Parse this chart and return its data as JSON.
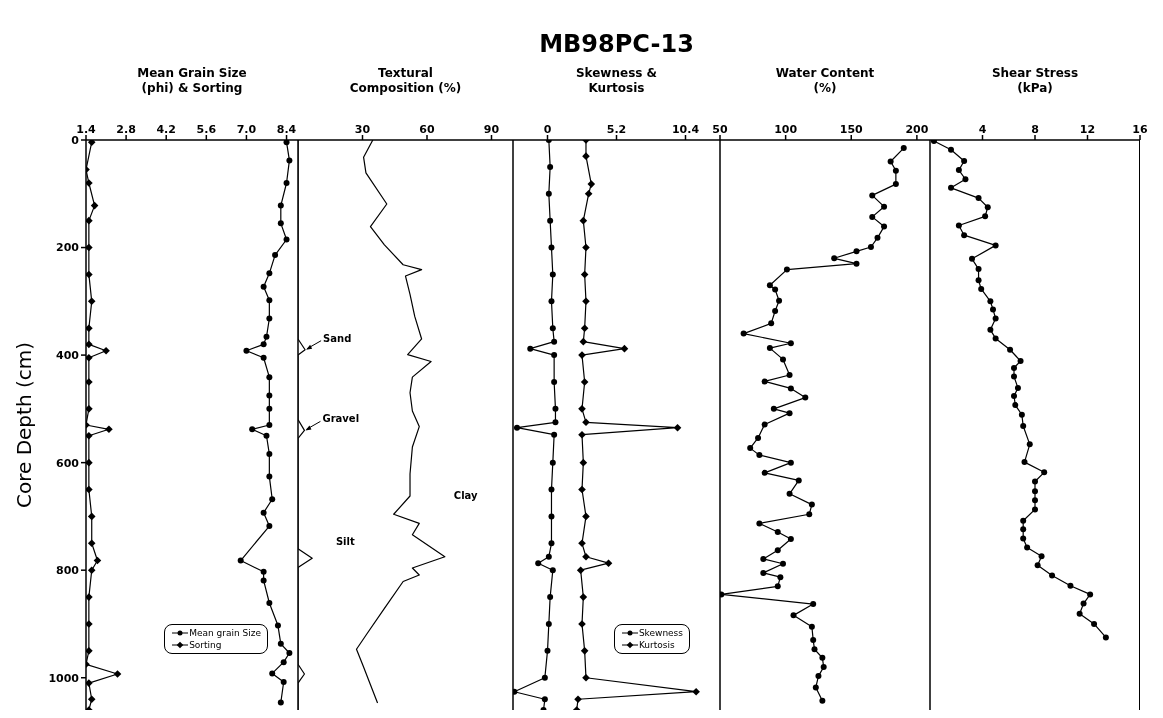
{
  "chart_data": [
    {
      "type": "line",
      "orientation": "horizontal",
      "xlabel": "Mean Grain Size (phi) & Sorting",
      "ylabel": "Core Depth (cm)",
      "xlim": [
        1.4,
        8.8
      ],
      "xticks": [
        1.4,
        2.8,
        4.2,
        5.6,
        {
          "value": 7,
          "label": "7.0"
        },
        8.4
      ],
      "ylim": [
        1060,
        0
      ],
      "yticks": [
        0,
        200,
        400,
        600,
        800,
        1000
      ],
      "legend": "bottom right",
      "series": [
        {
          "name": "Mean grain Size",
          "color": "#000000",
          "marker": "circle",
          "x": [
            4,
            38,
            80,
            122,
            155,
            185,
            214,
            248,
            273,
            298,
            332,
            366,
            380,
            392,
            405,
            441,
            475,
            500,
            530,
            538,
            550,
            584,
            626,
            668,
            693,
            718,
            782,
            803,
            819,
            861,
            903,
            937,
            954,
            971,
            992,
            1008,
            1046
          ],
          "values": [
            8.4,
            8.5,
            8.4,
            8.2,
            8.2,
            8.4,
            8.0,
            7.8,
            7.6,
            7.8,
            7.8,
            7.7,
            7.6,
            7.0,
            7.6,
            7.8,
            7.8,
            7.8,
            7.8,
            7.2,
            7.7,
            7.8,
            7.8,
            7.9,
            7.6,
            7.8,
            6.8,
            7.6,
            7.6,
            7.8,
            8.1,
            8.2,
            8.5,
            8.3,
            7.9,
            8.3,
            8.2
          ]
        },
        {
          "name": "Sorting",
          "color": "#000000",
          "marker": "diamond",
          "x": [
            4,
            55,
            80,
            122,
            150,
            200,
            250,
            300,
            350,
            380,
            392,
            405,
            450,
            500,
            530,
            538,
            550,
            600,
            650,
            700,
            750,
            782,
            800,
            850,
            900,
            950,
            975,
            993,
            1010,
            1040,
            1060
          ],
          "values": [
            1.6,
            1.4,
            1.5,
            1.7,
            1.5,
            1.5,
            1.5,
            1.6,
            1.5,
            1.5,
            2.1,
            1.5,
            1.5,
            1.5,
            1.4,
            2.2,
            1.5,
            1.5,
            1.5,
            1.6,
            1.6,
            1.8,
            1.6,
            1.5,
            1.5,
            1.5,
            1.4,
            2.5,
            1.5,
            1.6,
            1.5
          ]
        }
      ]
    },
    {
      "type": "line",
      "orientation": "horizontal",
      "xlabel": "Textural Composition (%)",
      "xlim": [
        0,
        100
      ],
      "xticks": [
        30,
        60,
        90
      ],
      "ylim": [
        1060,
        0
      ],
      "yticks": [
        0,
        200,
        400,
        600,
        800,
        1000
      ],
      "tick_labels": "x",
      "series": [
        {
          "color": "#000000",
          "marker": "none",
          "x": [
            0,
            370,
            390,
            400,
            520,
            540,
            555,
            760,
            778,
            795,
            975,
            993,
            1010,
            1060
          ],
          "values": [
            0,
            0,
            3.3,
            0,
            0,
            3,
            0,
            0,
            6.6,
            0,
            0,
            3,
            0,
            0
          ]
        },
        {
          "color": "#000000",
          "marker": "none",
          "x": [
            0,
            32,
            61,
            119,
            161,
            195,
            232,
            241,
            253,
            287,
            328,
            370,
            399,
            412,
            441,
            470,
            504,
            533,
            571,
            621,
            662,
            696,
            713,
            734,
            775,
            796,
            809,
            821,
            871,
            921,
            947,
            980,
            1013,
            1047
          ],
          "values": [
            34.8,
            30.5,
            31.6,
            41.3,
            33.7,
            40.2,
            48.9,
            57.5,
            50,
            52.1,
            54.3,
            57.5,
            51,
            61.9,
            53.2,
            52.1,
            53.2,
            56.4,
            53.2,
            52.1,
            52.1,
            44.5,
            56.4,
            53.2,
            68.3,
            53.2,
            56.4,
            48.9,
            40.2,
            31.6,
            27.2,
            30.5,
            33.7,
            37
          ]
        }
      ],
      "annotations": [
        {
          "text": "Sand",
          "x": 3.3,
          "y": 390
        },
        {
          "text": "Gravel",
          "x": 3,
          "y": 540
        },
        "Silt",
        "Clay"
      ]
    },
    {
      "type": "line",
      "orientation": "horizontal",
      "title": "MB98PC-13",
      "xlabel": "Skewness & Kurtosis",
      "xlim": [
        -2.6,
        13
      ],
      "xticks": [
        0,
        5.2,
        10.4
      ],
      "ylim": [
        1060,
        0
      ],
      "yticks": [
        0,
        200,
        400,
        600,
        800,
        1000
      ],
      "tick_labels": "x",
      "legend": "bottom right",
      "series": [
        {
          "name": "Skewness",
          "color": "#000000",
          "marker": "circle",
          "x": [
            0,
            50,
            100,
            150,
            200,
            250,
            300,
            350,
            375,
            388,
            400,
            450,
            500,
            525,
            535,
            548,
            600,
            650,
            700,
            750,
            775,
            787,
            800,
            850,
            900,
            950,
            1000,
            1026,
            1040,
            1060
          ],
          "values": [
            0.1,
            0.2,
            0.1,
            0.2,
            0.3,
            0.4,
            0.3,
            0.4,
            0.5,
            -1.3,
            0.5,
            0.5,
            0.6,
            0.6,
            -2.3,
            0.5,
            0.4,
            0.3,
            0.3,
            0.3,
            0.1,
            -0.7,
            0.4,
            0.2,
            0.1,
            0,
            -0.2,
            -2.5,
            -0.2,
            -0.3
          ]
        },
        {
          "name": "Kurtosis",
          "color": "#000000",
          "marker": "diamond",
          "x": [
            0,
            30,
            82,
            100,
            150,
            200,
            250,
            300,
            350,
            375,
            388,
            400,
            450,
            500,
            525,
            535,
            548,
            600,
            650,
            700,
            750,
            775,
            787,
            800,
            850,
            900,
            950,
            1000,
            1026,
            1040,
            1060
          ],
          "values": [
            2.9,
            2.9,
            3.3,
            3.1,
            2.7,
            2.9,
            2.8,
            2.9,
            2.8,
            2.7,
            5.8,
            2.6,
            2.8,
            2.6,
            2.9,
            9.8,
            2.6,
            2.7,
            2.6,
            2.9,
            2.6,
            2.9,
            4.6,
            2.5,
            2.7,
            2.6,
            2.8,
            2.9,
            11.2,
            2.3,
            2.2
          ]
        }
      ]
    },
    {
      "type": "line",
      "orientation": "horizontal",
      "xlabel": "Water Content (%)",
      "xlim": [
        50,
        210
      ],
      "xticks": [
        50,
        100,
        150,
        200
      ],
      "ylim": [
        1060,
        0
      ],
      "yticks": [
        0,
        200,
        400,
        600,
        800,
        1000
      ],
      "tick_labels": "x",
      "series": [
        {
          "color": "#000000",
          "marker": "circle",
          "x": [
            15,
            40,
            57,
            82,
            103,
            124,
            143,
            161,
            182,
            199,
            207,
            220,
            230,
            241,
            270,
            278,
            299,
            318,
            341,
            360,
            378,
            387,
            408,
            437,
            449,
            462,
            479,
            500,
            508,
            529,
            554,
            573,
            586,
            600,
            619,
            633,
            658,
            678,
            696,
            713,
            729,
            742,
            763,
            779,
            788,
            805,
            813,
            830,
            845,
            863,
            884,
            905,
            930,
            947,
            963,
            980,
            997,
            1018,
            1043
          ],
          "values": [
            190,
            180,
            184,
            184,
            166,
            175,
            166,
            175,
            170,
            165,
            154,
            137,
            154,
            101,
            88,
            92,
            95,
            92,
            89,
            68,
            104,
            88,
            98,
            103,
            84,
            104,
            115,
            91,
            103,
            84,
            79,
            73,
            80,
            104,
            84,
            110,
            103,
            120,
            118,
            80,
            94,
            104,
            94,
            83,
            98,
            83,
            96,
            94,
            51,
            121,
            106,
            120,
            121,
            122,
            128,
            129,
            125,
            123,
            128
          ]
        }
      ]
    },
    {
      "type": "line",
      "orientation": "horizontal",
      "xlabel": "Shear Stress (kPa)",
      "xlim": [
        0,
        16
      ],
      "xticks": [
        4,
        8,
        12,
        16
      ],
      "ylim": [
        1060,
        0
      ],
      "yticks": [
        0,
        200,
        400,
        600,
        800,
        1000
      ],
      "tick_labels": "x",
      "series": [
        {
          "color": "#000000",
          "marker": "circle",
          "x": [
            2,
            18,
            39,
            56,
            73,
            89,
            108,
            125,
            142,
            159,
            177,
            196,
            221,
            240,
            261,
            277,
            300,
            315,
            332,
            353,
            369,
            390,
            411,
            424,
            440,
            461,
            476,
            493,
            511,
            532,
            566,
            599,
            618,
            635,
            653,
            670,
            687,
            708,
            724,
            741,
            758,
            774,
            791,
            810,
            829,
            845,
            862,
            881,
            900,
            925
          ],
          "values": [
            0.3,
            1.6,
            2.6,
            2.2,
            2.7,
            1.6,
            3.7,
            4.4,
            4.2,
            2.2,
            2.6,
            5,
            3.2,
            3.7,
            3.7,
            3.9,
            4.6,
            4.8,
            5,
            4.6,
            5,
            6.1,
            6.9,
            6.4,
            6.4,
            6.7,
            6.4,
            6.5,
            7,
            7.1,
            7.6,
            7.2,
            8.7,
            8,
            8,
            8,
            8,
            7.1,
            7.1,
            7.1,
            7.4,
            8.5,
            8.2,
            9.3,
            10.7,
            12.2,
            11.7,
            11.4,
            12.5,
            13.4
          ]
        }
      ]
    }
  ]
}
